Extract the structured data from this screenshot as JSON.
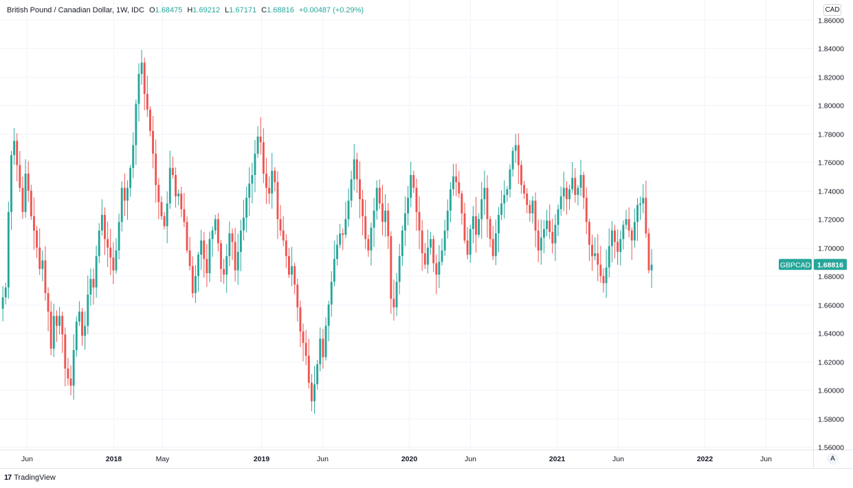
{
  "header": {
    "symbol_name": "British Pound / Canadian Dollar, 1W, IDC",
    "open_label": "O",
    "open_value": "1.68475",
    "high_label": "H",
    "high_value": "1.69212",
    "low_label": "L",
    "low_value": "1.67171",
    "close_label": "C",
    "close_value": "1.68816",
    "change_value": "+0.00487 (+0.29%)"
  },
  "currency_button": "CAD",
  "price_tag": {
    "symbol": "GBPCAD",
    "value": "1.68816"
  },
  "auto_scale_button": "A",
  "branding": {
    "logo_text": "17",
    "name": "TradingView"
  },
  "colors": {
    "up": "#26a69a",
    "down": "#ef5350",
    "grid": "#f0f3fa",
    "axis_text": "#131722"
  },
  "chart_data": {
    "type": "candlestick",
    "symbol": "GBPCAD",
    "interval": "1W",
    "ylim": [
      1.56,
      1.86
    ],
    "y_ticks": [
      "1.56000",
      "1.58000",
      "1.60000",
      "1.62000",
      "1.64000",
      "1.66000",
      "1.68000",
      "1.70000",
      "1.72000",
      "1.74000",
      "1.76000",
      "1.78000",
      "1.80000",
      "1.82000",
      "1.84000",
      "1.86000"
    ],
    "x_tick_labels": [
      {
        "label": "Jun",
        "date": "2017-06-01",
        "bold": false
      },
      {
        "label": "2018",
        "date": "2018-01-01",
        "bold": true
      },
      {
        "label": "May",
        "date": "2018-05-01",
        "bold": false
      },
      {
        "label": "2019",
        "date": "2019-01-01",
        "bold": true
      },
      {
        "label": "Jun",
        "date": "2019-06-01",
        "bold": false
      },
      {
        "label": "2020",
        "date": "2020-01-01",
        "bold": true
      },
      {
        "label": "Jun",
        "date": "2020-06-01",
        "bold": false
      },
      {
        "label": "2021",
        "date": "2021-01-01",
        "bold": true
      },
      {
        "label": "Jun",
        "date": "2021-06-01",
        "bold": false
      },
      {
        "label": "2022",
        "date": "2022-01-01",
        "bold": true
      },
      {
        "label": "Jun",
        "date": "2022-06-01",
        "bold": false
      }
    ],
    "x_range": [
      "2017-03-27",
      "2022-09-26"
    ],
    "candle_start": "2017-04-03",
    "candle_interval_days": 7,
    "closes": [
      1.665,
      1.672,
      1.725,
      1.765,
      1.775,
      1.758,
      1.742,
      1.725,
      1.752,
      1.74,
      1.722,
      1.712,
      1.7,
      1.685,
      1.691,
      1.668,
      1.655,
      1.629,
      1.652,
      1.645,
      1.652,
      1.639,
      1.615,
      1.608,
      1.603,
      1.628,
      1.648,
      1.655,
      1.638,
      1.645,
      1.667,
      1.678,
      1.672,
      1.694,
      1.712,
      1.723,
      1.706,
      1.7,
      1.693,
      1.684,
      1.698,
      1.718,
      1.742,
      1.733,
      1.742,
      1.756,
      1.772,
      1.801,
      1.822,
      1.83,
      1.808,
      1.797,
      1.782,
      1.766,
      1.744,
      1.732,
      1.722,
      1.715,
      1.731,
      1.756,
      1.751,
      1.736,
      1.738,
      1.727,
      1.718,
      1.698,
      1.687,
      1.668,
      1.68,
      1.695,
      1.705,
      1.692,
      1.682,
      1.706,
      1.712,
      1.72,
      1.703,
      1.685,
      1.681,
      1.694,
      1.71,
      1.704,
      1.684,
      1.697,
      1.712,
      1.721,
      1.735,
      1.745,
      1.751,
      1.766,
      1.778,
      1.774,
      1.752,
      1.742,
      1.738,
      1.754,
      1.746,
      1.72,
      1.712,
      1.705,
      1.694,
      1.681,
      1.687,
      1.674,
      1.658,
      1.641,
      1.633,
      1.624,
      1.605,
      1.592,
      1.604,
      1.618,
      1.636,
      1.623,
      1.645,
      1.66,
      1.676,
      1.692,
      1.702,
      1.71,
      1.709,
      1.72,
      1.733,
      1.748,
      1.762,
      1.748,
      1.734,
      1.722,
      1.706,
      1.698,
      1.714,
      1.726,
      1.742,
      1.731,
      1.718,
      1.726,
      1.708,
      1.664,
      1.658,
      1.676,
      1.694,
      1.712,
      1.724,
      1.735,
      1.751,
      1.742,
      1.725,
      1.712,
      1.696,
      1.688,
      1.7,
      1.706,
      1.689,
      1.681,
      1.69,
      1.698,
      1.712,
      1.726,
      1.741,
      1.75,
      1.746,
      1.738,
      1.724,
      1.705,
      1.695,
      1.713,
      1.722,
      1.709,
      1.72,
      1.734,
      1.742,
      1.72,
      1.706,
      1.694,
      1.71,
      1.723,
      1.731,
      1.737,
      1.741,
      1.755,
      1.768,
      1.772,
      1.758,
      1.744,
      1.738,
      1.73,
      1.724,
      1.733,
      1.712,
      1.698,
      1.707,
      1.713,
      1.719,
      1.711,
      1.703,
      1.716,
      1.727,
      1.736,
      1.742,
      1.734,
      1.741,
      1.749,
      1.737,
      1.742,
      1.751,
      1.735,
      1.718,
      1.702,
      1.694,
      1.696,
      1.688,
      1.68,
      1.675,
      1.686,
      1.701,
      1.712,
      1.704,
      1.697,
      1.706,
      1.716,
      1.72,
      1.712,
      1.705,
      1.718,
      1.73,
      1.731,
      1.735,
      1.71,
      1.684,
      1.688
    ]
  }
}
